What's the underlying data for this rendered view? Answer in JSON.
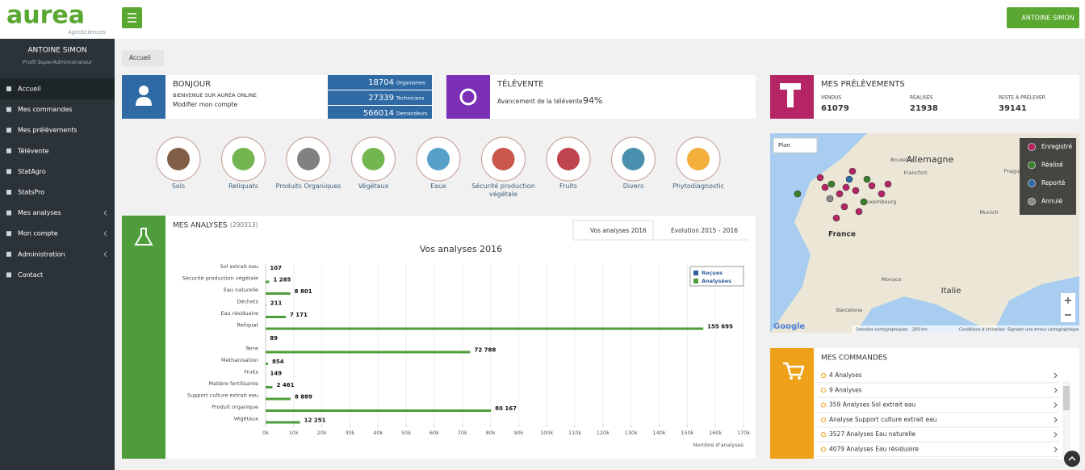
{
  "header": {
    "logo": "aurea",
    "logo_sub": "AgroSciences",
    "user_button": "ANTOINE SIMON"
  },
  "sidebar": {
    "user_name": "ANTOINE SIMON",
    "profile": "Profil SuperAdministrateur",
    "menu": [
      "Accueil",
      "Mes commandes",
      "Mes prélèvements",
      "Télévente",
      "StatAgro",
      "StatsPro",
      "Mes analyses",
      "Mon compte",
      "Administration",
      "Contact"
    ]
  },
  "breadcrumb": "Accueil",
  "welcome": {
    "title": "BONJOUR",
    "subtitle": "BIENVENUE SUR AURÉA ONLINE",
    "link": "Modifier mon compte",
    "stats": [
      {
        "value": 18704,
        "label": "Organismes"
      },
      {
        "value": 27339,
        "label": "Techniciens"
      },
      {
        "value": 566014,
        "label": "Demandeurs"
      }
    ]
  },
  "televente": {
    "title": "TÉLÉVENTE",
    "text": "Avancement de la télévente :",
    "value": "94%"
  },
  "prelevements": {
    "title": "MES PRÉLÈVEMENTS",
    "items": [
      {
        "label": "VENDUS",
        "value": 61079
      },
      {
        "label": "RÉALISÉS",
        "value": 21938
      },
      {
        "label": "RESTE À PRÉLEVER",
        "value": 39141
      }
    ]
  },
  "categories": [
    "Sols",
    "Reliquats",
    "Produits Organiques",
    "Végétaux",
    "Eaux",
    "Sécurité production végétale",
    "Fruits",
    "Divers",
    "Phytodiagnostic"
  ],
  "analyses": {
    "title": "MES ANALYSES",
    "count": "(290313)",
    "tabs": [
      "Vos analyses 2016",
      "Evolution 2015 - 2016"
    ]
  },
  "chart_data": {
    "type": "bar",
    "orientation": "horizontal",
    "title": "Vos analyses 2016",
    "x_label": "Nombre d'analyses",
    "categories": [
      "Sol extrait eau",
      "Sécurité production végétale",
      "Eau naturelle",
      "Déchets",
      "Eau résiduaire",
      "Reliquat",
      null,
      "Terre",
      "Méthanisation",
      "Fruits",
      "Matière fertilisante",
      "Support culture extrait eau",
      "Produit organique",
      "Végétaux"
    ],
    "series": [
      {
        "name": "Reçues",
        "color": "#2f5f9e",
        "values": [
          null,
          null,
          null,
          null,
          null,
          null,
          null,
          null,
          null,
          null,
          null,
          null,
          null,
          null
        ]
      },
      {
        "name": "Analysées",
        "color": "#4e9d3a",
        "values": [
          107,
          1285,
          8801,
          211,
          7171,
          155695,
          89,
          72788,
          854,
          149,
          2461,
          8889,
          80167,
          12251
        ],
        "value_labels": [
          "107",
          "1 285",
          "8 801",
          "211",
          "7 171",
          "155 695",
          "89",
          "72 788",
          "854",
          "149",
          "2 461",
          "8 889",
          "80 167",
          "12 251"
        ]
      }
    ],
    "xlim": [
      0,
      170000
    ],
    "xticks": [
      {
        "value": 0,
        "label": "0k"
      },
      {
        "value": 10000,
        "label": "10k"
      },
      {
        "value": 20000,
        "label": "20k"
      },
      {
        "value": 30000,
        "label": "30k"
      },
      {
        "value": 40000,
        "label": "40k"
      },
      {
        "value": 50000,
        "label": "50k"
      },
      {
        "value": 60000,
        "label": "60k"
      },
      {
        "value": 70000,
        "label": "70k"
      },
      {
        "value": 80000,
        "label": "80k"
      },
      {
        "value": 90000,
        "label": "90k"
      },
      {
        "value": 100000,
        "label": "100k"
      },
      {
        "value": 110000,
        "label": "110k"
      },
      {
        "value": 120000,
        "label": "120k"
      },
      {
        "value": 130000,
        "label": "130k"
      },
      {
        "value": 140000,
        "label": "140k"
      },
      {
        "value": 150000,
        "label": "150k"
      },
      {
        "value": 160000,
        "label": "160k"
      },
      {
        "value": 170000,
        "label": "170k"
      }
    ],
    "grid": true,
    "legend": "top-right"
  },
  "map": {
    "control": "Plan",
    "labels": [
      "Allemagne",
      "France",
      "Italie",
      "Bruxelles",
      "Francfort",
      "Luxembourg",
      "Munich",
      "Prague",
      "Monaco",
      "Barcelone"
    ],
    "legend": [
      "Enregistré",
      "Réalisé",
      "Reporté",
      "Annulé"
    ],
    "brand": "Google",
    "footer": [
      "Données cartographiques",
      "200 km",
      "Conditions d'utilisation",
      "Signaler une erreur cartographique"
    ]
  },
  "commandes": {
    "title": "MES COMMANDES",
    "items": [
      "4 Analyses",
      "9 Analyses",
      "359 Analyses Sol extrait eau",
      "Analyse Support culture extrait eau",
      "3527 Analyses Eau naturelle",
      "4079 Analyses Eau résiduaire"
    ]
  }
}
